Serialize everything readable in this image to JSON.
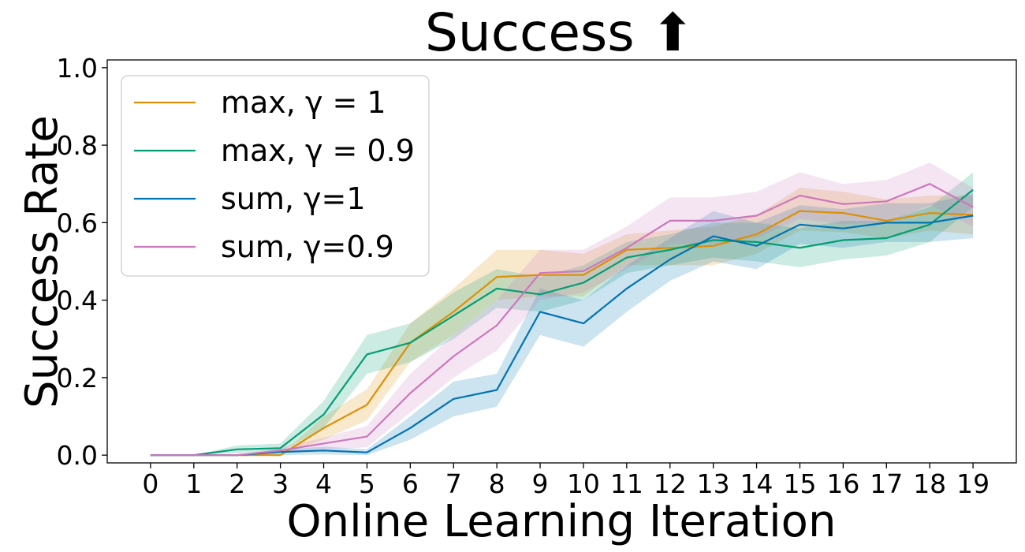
{
  "chart_data": {
    "type": "line",
    "title": "Success ⬆",
    "xlabel": "Online Learning Iteration",
    "ylabel": "Success Rate",
    "x": [
      0,
      1,
      2,
      3,
      4,
      5,
      6,
      7,
      8,
      9,
      10,
      11,
      12,
      13,
      14,
      15,
      16,
      17,
      18,
      19
    ],
    "xlim": [
      -1,
      20
    ],
    "ylim": [
      -0.02,
      1.02
    ],
    "yticks": [
      0.0,
      0.2,
      0.4,
      0.6,
      0.8,
      1.0
    ],
    "ytick_labels": [
      "0.0",
      "0.2",
      "0.4",
      "0.6",
      "0.8",
      "1.0"
    ],
    "xtick_labels": [
      "0",
      "1",
      "2",
      "3",
      "4",
      "5",
      "6",
      "7",
      "8",
      "9",
      "10",
      "11",
      "12",
      "13",
      "14",
      "15",
      "16",
      "17",
      "18",
      "19"
    ],
    "grid": false,
    "legend_position": "top-left",
    "series": [
      {
        "name": "max, γ = 1",
        "color": "#de8f05",
        "values": [
          0.0,
          0.0,
          0.0,
          0.0,
          0.07,
          0.13,
          0.29,
          0.37,
          0.46,
          0.465,
          0.465,
          0.53,
          0.535,
          0.54,
          0.57,
          0.63,
          0.625,
          0.605,
          0.625,
          0.62
        ],
        "lower": [
          0.0,
          0.0,
          0.0,
          0.0,
          0.04,
          0.09,
          0.24,
          0.31,
          0.4,
          0.41,
          0.41,
          0.49,
          0.49,
          0.49,
          0.52,
          0.58,
          0.575,
          0.56,
          0.58,
          0.57
        ],
        "upper": [
          0.0,
          0.0,
          0.0,
          0.0,
          0.1,
          0.17,
          0.34,
          0.43,
          0.53,
          0.53,
          0.52,
          0.57,
          0.58,
          0.59,
          0.62,
          0.69,
          0.68,
          0.66,
          0.67,
          0.67
        ]
      },
      {
        "name": "max, γ = 0.9",
        "color": "#029e73",
        "values": [
          0.0,
          0.0,
          0.015,
          0.018,
          0.105,
          0.26,
          0.29,
          0.36,
          0.43,
          0.415,
          0.445,
          0.51,
          0.53,
          0.555,
          0.55,
          0.535,
          0.555,
          0.56,
          0.595,
          0.685
        ],
        "lower": [
          0.0,
          0.0,
          0.005,
          0.008,
          0.07,
          0.21,
          0.24,
          0.3,
          0.38,
          0.37,
          0.4,
          0.47,
          0.49,
          0.51,
          0.5,
          0.485,
          0.505,
          0.515,
          0.55,
          0.64
        ],
        "upper": [
          0.0,
          0.0,
          0.025,
          0.03,
          0.14,
          0.31,
          0.34,
          0.42,
          0.48,
          0.46,
          0.49,
          0.55,
          0.57,
          0.6,
          0.6,
          0.585,
          0.605,
          0.605,
          0.64,
          0.73
        ]
      },
      {
        "name": "sum, γ=1",
        "color": "#0173b2",
        "values": [
          0.0,
          0.0,
          0.0,
          0.008,
          0.012,
          0.007,
          0.07,
          0.145,
          0.168,
          0.37,
          0.34,
          0.43,
          0.505,
          0.565,
          0.54,
          0.595,
          0.585,
          0.6,
          0.6,
          0.618
        ],
        "lower": [
          0.0,
          0.0,
          0.0,
          0.0,
          0.002,
          0.0,
          0.04,
          0.1,
          0.125,
          0.31,
          0.28,
          0.37,
          0.45,
          0.5,
          0.48,
          0.545,
          0.535,
          0.55,
          0.55,
          0.56
        ],
        "upper": [
          0.0,
          0.0,
          0.0,
          0.015,
          0.022,
          0.015,
          0.1,
          0.19,
          0.21,
          0.43,
          0.4,
          0.49,
          0.56,
          0.63,
          0.6,
          0.645,
          0.635,
          0.65,
          0.65,
          0.675
        ]
      },
      {
        "name": "sum, γ=0.9",
        "color": "#cc78bc",
        "values": [
          0.0,
          0.0,
          0.0,
          0.012,
          0.03,
          0.048,
          0.16,
          0.255,
          0.335,
          0.47,
          0.475,
          0.535,
          0.605,
          0.605,
          0.618,
          0.67,
          0.648,
          0.655,
          0.7,
          0.64
        ],
        "lower": [
          0.0,
          0.0,
          0.0,
          0.004,
          0.015,
          0.02,
          0.11,
          0.2,
          0.27,
          0.4,
          0.42,
          0.48,
          0.545,
          0.545,
          0.56,
          0.61,
          0.595,
          0.6,
          0.645,
          0.59
        ],
        "upper": [
          0.0,
          0.0,
          0.0,
          0.02,
          0.045,
          0.075,
          0.21,
          0.31,
          0.4,
          0.53,
          0.53,
          0.59,
          0.665,
          0.665,
          0.68,
          0.73,
          0.7,
          0.71,
          0.755,
          0.69
        ]
      }
    ]
  }
}
